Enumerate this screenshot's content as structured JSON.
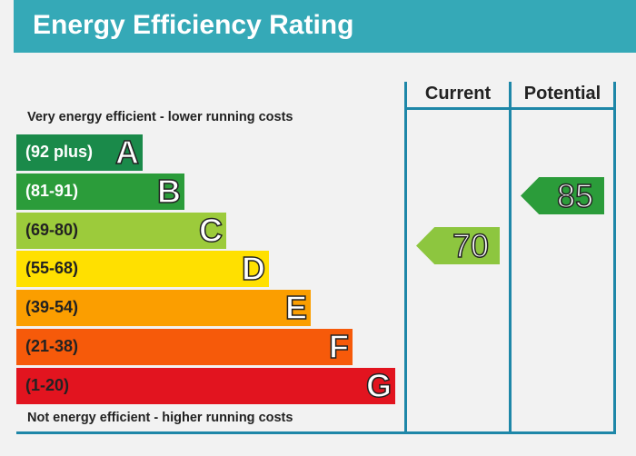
{
  "title": "Energy Efficiency Rating",
  "chart_data": {
    "type": "bar",
    "title": "Energy Efficiency Rating",
    "top_note": "Very energy efficient - lower running costs",
    "bottom_note": "Not energy efficient - higher running costs",
    "columns": [
      "Current",
      "Potential"
    ],
    "bands": [
      {
        "letter": "A",
        "range": "(92 plus)",
        "color": "#1a8a4a",
        "min": 92
      },
      {
        "letter": "B",
        "range": "(81-91)",
        "color": "#2b9c3a",
        "min": 81
      },
      {
        "letter": "C",
        "range": "(69-80)",
        "color": "#9ccb3b",
        "min": 69
      },
      {
        "letter": "D",
        "range": "(55-68)",
        "color": "#ffe000",
        "min": 55
      },
      {
        "letter": "E",
        "range": "(39-54)",
        "color": "#fb9e00",
        "min": 39
      },
      {
        "letter": "F",
        "range": "(21-38)",
        "color": "#f65a0a",
        "min": 21
      },
      {
        "letter": "G",
        "range": "(1-20)",
        "color": "#e2141f",
        "min": 1
      }
    ],
    "current": {
      "value": "70",
      "band": "C",
      "color": "#8dc63f"
    },
    "potential": {
      "value": "85",
      "band": "B",
      "color": "#2b9c3a"
    }
  }
}
